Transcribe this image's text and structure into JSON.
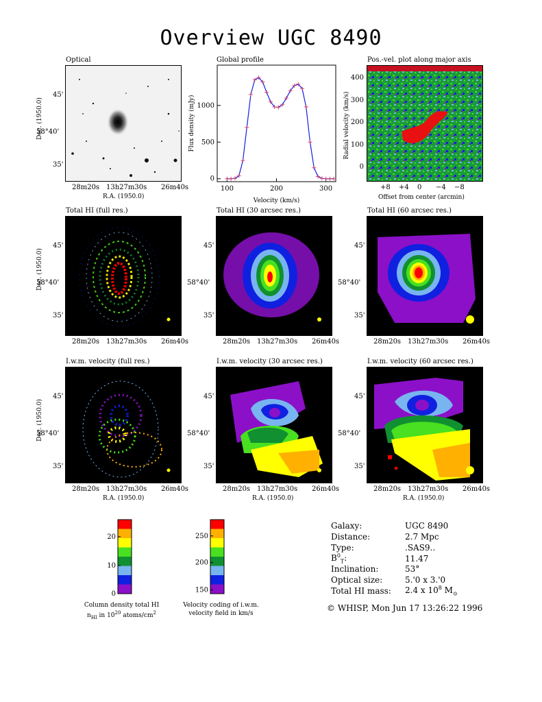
{
  "title": "Overview UGC 8490",
  "panels": {
    "optical": "Optical",
    "global": "Global profile",
    "pv": "Pos.-vel. plot along major axis",
    "hi_full": "Total HI (full res.)",
    "hi_30": "Total HI (30 arcsec res.)",
    "hi_60": "Total HI (60 arcsec res.)",
    "vel_full": "I.w.m. velocity (full res.)",
    "vel_30": "I.w.m. velocity (30 arcsec res.)",
    "vel_60": "I.w.m. velocity (60 arcsec res.)"
  },
  "axes": {
    "dec_label": "Dec. (1950.0)",
    "ra_label": "R.A. (1950.0)",
    "dec_ticks": [
      "45",
      "58°40",
      "35"
    ],
    "ra_ticks": [
      "28m20s",
      "13h27m30s",
      "26m40s"
    ],
    "flux_label": "Flux density (mJy)",
    "velocity_label": "Velocity (km/s)",
    "radial_label": "Radial velocity (km/s)",
    "offset_label": "Offset from center (arcmin)"
  },
  "chart_data": {
    "type": "line",
    "title": "Global profile",
    "xlabel": "Velocity (km/s)",
    "ylabel": "Flux density (mJy)",
    "xlim": [
      80,
      320
    ],
    "ylim": [
      -40,
      1550
    ],
    "xticks": [
      100,
      200,
      300
    ],
    "yticks": [
      0,
      500,
      1000
    ],
    "x": [
      100,
      108,
      116,
      124,
      132,
      140,
      148,
      156,
      164,
      172,
      180,
      188,
      196,
      204,
      212,
      220,
      228,
      236,
      244,
      252,
      260,
      268,
      276,
      284,
      292,
      300,
      308,
      316
    ],
    "y": [
      0,
      0,
      5,
      40,
      250,
      700,
      1150,
      1350,
      1380,
      1320,
      1180,
      1050,
      980,
      975,
      1010,
      1100,
      1200,
      1270,
      1290,
      1230,
      980,
      500,
      150,
      30,
      5,
      0,
      0,
      0
    ]
  },
  "pv": {
    "yticks": [
      "0",
      "100",
      "200",
      "300",
      "400"
    ],
    "xticks": [
      "+8",
      "+4",
      "0",
      "−4",
      "−8"
    ]
  },
  "colorbars": {
    "density_ticks": [
      "0",
      "10",
      "20"
    ],
    "density_caption_1": "Column density total HI",
    "density_caption_2": "nHI in 1020 atoms/cm2",
    "velocity_ticks": [
      "150",
      "200",
      "250"
    ],
    "velocity_caption_1": "Velocity coding of i.w.m.",
    "velocity_caption_2": "velocity field in km/s",
    "colors": [
      "#8b10c8",
      "#1020e0",
      "#78b4f0",
      "#109030",
      "#48e020",
      "#ffff00",
      "#ffb000",
      "#ff0000"
    ]
  },
  "info": {
    "galaxy_label": "Galaxy:",
    "galaxy": "UGC 8490",
    "distance_label": "Distance:",
    "distance": "2.7 Mpc",
    "type_label": "Type:",
    "type": ".SAS9..",
    "bt_label": "B0T:",
    "bt": "11.47",
    "incl_label": "Inclination:",
    "incl": "53°",
    "optsize_label": "Optical size:",
    "optsize": "5.'0 x 3.'0",
    "himass_label": "Total HI mass:",
    "himass": "2.4 x 108 M⊙"
  },
  "credit": "© WHISP, Mon Jun 17 13:26:22 1996"
}
